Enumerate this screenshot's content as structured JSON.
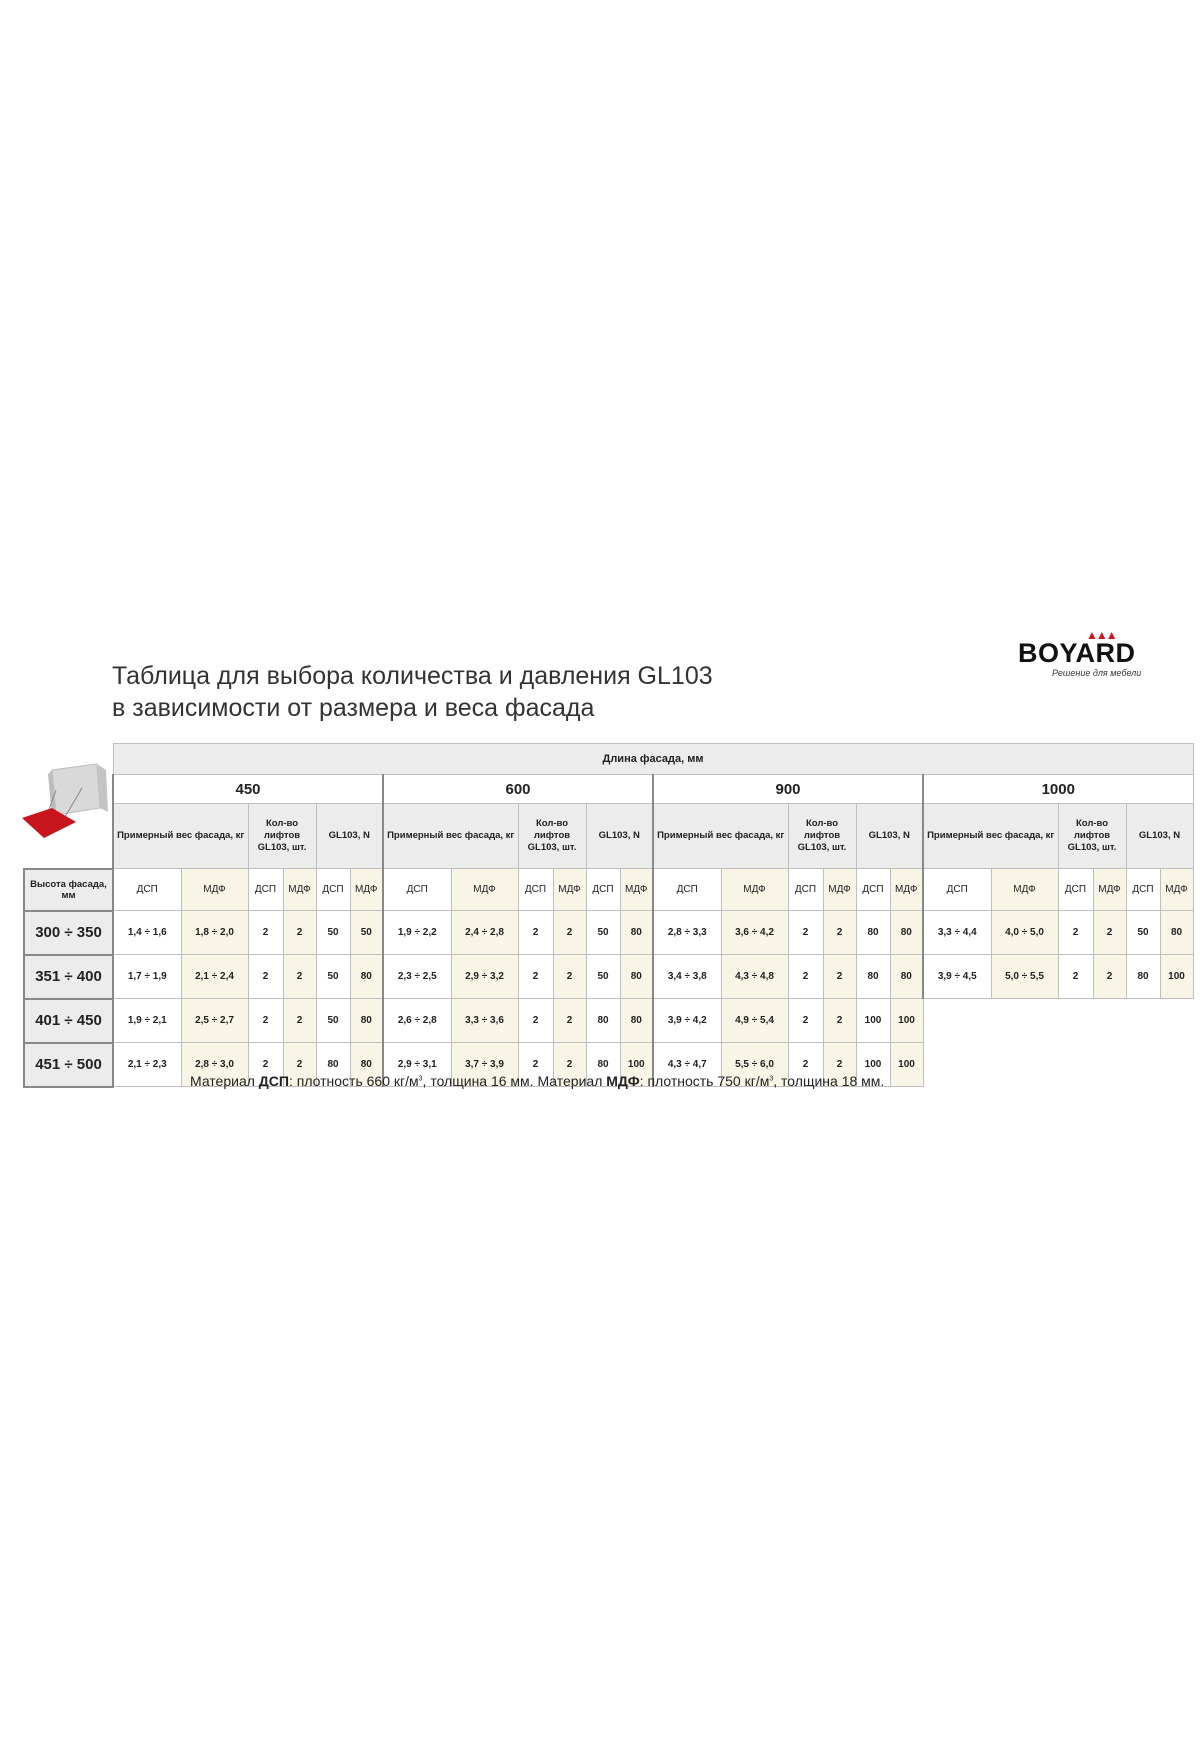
{
  "title": {
    "line1": "Таблица для выбора количества и давления GL103",
    "line2": "в зависимости от размера и веса фасада"
  },
  "logo": {
    "brand": "BOYARD",
    "slogan": "Решение для мебели",
    "colors": {
      "crown": "#d01818"
    }
  },
  "table": {
    "length_header": "Длина фасада, мм",
    "height_header": "Высота фасада, мм",
    "sub_headers": {
      "weight": "Примерный вес фасада, кг",
      "count": "Кол-во лифтов GL103, шт.",
      "force": "GL103, N"
    },
    "materials": {
      "dsp": "ДСП",
      "mdf": "МДФ"
    },
    "heights": [
      "300 ÷ 350",
      "351 ÷ 400",
      "401 ÷ 450",
      "451 ÷ 500"
    ],
    "groups": [
      {
        "length": "450",
        "rows": [
          [
            "1,4 ÷ 1,6",
            "1,8 ÷ 2,0",
            "2",
            "2",
            "50",
            "50"
          ],
          [
            "1,7 ÷ 1,9",
            "2,1 ÷ 2,4",
            "2",
            "2",
            "50",
            "80"
          ],
          [
            "1,9 ÷ 2,1",
            "2,5 ÷ 2,7",
            "2",
            "2",
            "50",
            "80"
          ],
          [
            "2,1 ÷ 2,3",
            "2,8 ÷ 3,0",
            "2",
            "2",
            "80",
            "80"
          ]
        ]
      },
      {
        "length": "600",
        "rows": [
          [
            "1,9 ÷ 2,2",
            "2,4 ÷ 2,8",
            "2",
            "2",
            "50",
            "80"
          ],
          [
            "2,3 ÷ 2,5",
            "2,9 ÷ 3,2",
            "2",
            "2",
            "50",
            "80"
          ],
          [
            "2,6 ÷ 2,8",
            "3,3 ÷ 3,6",
            "2",
            "2",
            "80",
            "80"
          ],
          [
            "2,9 ÷ 3,1",
            "3,7 ÷ 3,9",
            "2",
            "2",
            "80",
            "100"
          ]
        ]
      },
      {
        "length": "900",
        "rows": [
          [
            "2,8 ÷ 3,3",
            "3,6 ÷ 4,2",
            "2",
            "2",
            "80",
            "80"
          ],
          [
            "3,4 ÷ 3,8",
            "4,3 ÷ 4,8",
            "2",
            "2",
            "80",
            "80"
          ],
          [
            "3,9 ÷ 4,2",
            "4,9 ÷ 5,4",
            "2",
            "2",
            "100",
            "100"
          ],
          [
            "4,3 ÷ 4,7",
            "5,5 ÷ 6,0",
            "2",
            "2",
            "100",
            "100"
          ]
        ]
      },
      {
        "length": "1000",
        "rows": [
          [
            "3,3 ÷ 4,4",
            "4,0 ÷ 5,0",
            "2",
            "2",
            "50",
            "80"
          ],
          [
            "3,9 ÷ 4,5",
            "5,0 ÷ 5,5",
            "2",
            "2",
            "80",
            "100"
          ]
        ]
      }
    ]
  },
  "footer": {
    "p1": "Материал ",
    "b1": "ДСП",
    "p2": ": плотность 660 кг/м",
    "sup1": "3",
    "p3": ", толщина 16 мм. Материал ",
    "b2": "МДФ",
    "p4": ": плотность 750 кг/м",
    "sup2": "3",
    "p5": ", толщина 18 мм."
  }
}
